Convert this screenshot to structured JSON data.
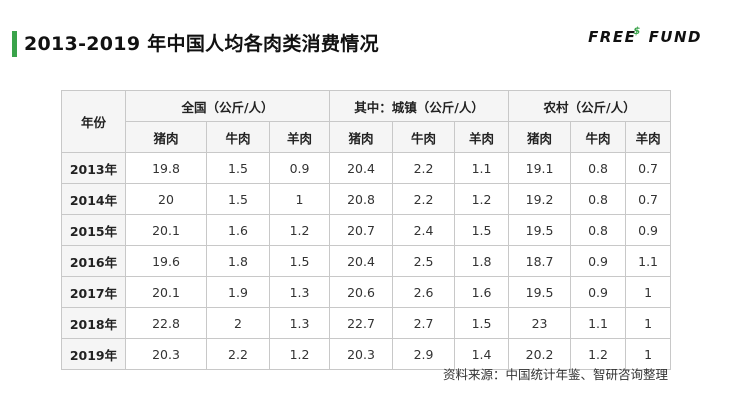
{
  "header": {
    "title": "2013-2019 年中国人均各肉类消费情况",
    "logo_left": "FREE",
    "logo_symbol": "$",
    "logo_right": "FUND",
    "accent_color": "#3aa34a"
  },
  "table": {
    "year_header": "年份",
    "groups": [
      "全国（公斤/人）",
      "其中：城镇（公斤/人）",
      "农村（公斤/人）"
    ],
    "meats": [
      "猪肉",
      "牛肉",
      "羊肉"
    ],
    "rows": [
      {
        "year": "2013年",
        "values": [
          "19.8",
          "1.5",
          "0.9",
          "20.4",
          "2.2",
          "1.1",
          "19.1",
          "0.8",
          "0.7"
        ]
      },
      {
        "year": "2014年",
        "values": [
          "20",
          "1.5",
          "1",
          "20.8",
          "2.2",
          "1.2",
          "19.2",
          "0.8",
          "0.7"
        ]
      },
      {
        "year": "2015年",
        "values": [
          "20.1",
          "1.6",
          "1.2",
          "20.7",
          "2.4",
          "1.5",
          "19.5",
          "0.8",
          "0.9"
        ]
      },
      {
        "year": "2016年",
        "values": [
          "19.6",
          "1.8",
          "1.5",
          "20.4",
          "2.5",
          "1.8",
          "18.7",
          "0.9",
          "1.1"
        ]
      },
      {
        "year": "2017年",
        "values": [
          "20.1",
          "1.9",
          "1.3",
          "20.6",
          "2.6",
          "1.6",
          "19.5",
          "0.9",
          "1"
        ]
      },
      {
        "year": "2018年",
        "values": [
          "22.8",
          "2",
          "1.3",
          "22.7",
          "2.7",
          "1.5",
          "23",
          "1.1",
          "1"
        ]
      },
      {
        "year": "2019年",
        "values": [
          "20.3",
          "2.2",
          "1.2",
          "20.3",
          "2.9",
          "1.4",
          "20.2",
          "1.2",
          "1"
        ]
      }
    ]
  },
  "footer": {
    "source": "资料来源：中国统计年鉴、智研咨询整理"
  }
}
